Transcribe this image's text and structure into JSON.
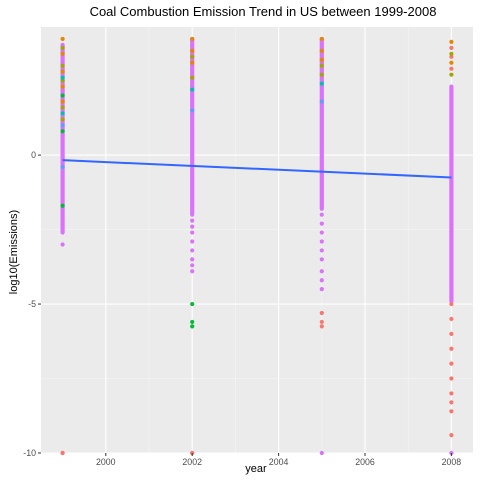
{
  "chart_data": {
    "type": "scatter",
    "title": "Coal Combustion Emission Trend in US between 1999-2008",
    "xlabel": "year",
    "ylabel": "log10(Emissions)",
    "xlim": [
      1998.5,
      2008.5
    ],
    "ylim": [
      -10,
      4.3
    ],
    "x_ticks": [
      2000,
      2002,
      2004,
      2006,
      2008
    ],
    "x_tick_labels": [
      "2000",
      "2002",
      "2004",
      "2006",
      "2008"
    ],
    "y_ticks": [
      -10,
      -5,
      0
    ],
    "y_tick_labels": [
      "-10",
      "-5",
      "0"
    ],
    "grid": true,
    "legend": "none",
    "series": [
      {
        "name": "group-red",
        "color": "#F8766D",
        "points": [
          {
            "x": 1999,
            "y": -10
          },
          {
            "x": 2002,
            "y": -10
          },
          {
            "x": 2005,
            "y": -5.3
          },
          {
            "x": 2005,
            "y": -5.6
          },
          {
            "x": 2005,
            "y": -5.75
          },
          {
            "x": 2008,
            "y": 3.6
          },
          {
            "x": 2008,
            "y": 3.3
          },
          {
            "x": 2008,
            "y": 2.9
          },
          {
            "x": 2008,
            "y": -5.0
          },
          {
            "x": 2008,
            "y": -5.5
          },
          {
            "x": 2008,
            "y": -6.0
          },
          {
            "x": 2008,
            "y": -6.5
          },
          {
            "x": 2008,
            "y": -7.0
          },
          {
            "x": 2008,
            "y": -7.5
          },
          {
            "x": 2008,
            "y": -8.0
          },
          {
            "x": 2008,
            "y": -8.3
          },
          {
            "x": 2008,
            "y": -8.6
          },
          {
            "x": 2008,
            "y": -9.4
          }
        ]
      },
      {
        "name": "group-orange",
        "color": "#E58700",
        "points": [
          {
            "x": 1999,
            "y": 3.9
          },
          {
            "x": 1999,
            "y": 3.4
          },
          {
            "x": 1999,
            "y": 2.8
          },
          {
            "x": 1999,
            "y": 2.3
          },
          {
            "x": 1999,
            "y": 1.8
          },
          {
            "x": 2002,
            "y": 3.9
          },
          {
            "x": 2002,
            "y": 3.5
          },
          {
            "x": 2002,
            "y": 3.1
          },
          {
            "x": 2005,
            "y": 3.9
          },
          {
            "x": 2005,
            "y": 3.5
          },
          {
            "x": 2005,
            "y": 3.2
          },
          {
            "x": 2008,
            "y": 3.8
          },
          {
            "x": 2008,
            "y": 3.1
          }
        ]
      },
      {
        "name": "group-olive",
        "color": "#A3A500",
        "points": [
          {
            "x": 1999,
            "y": 3.6
          },
          {
            "x": 1999,
            "y": 3.0
          },
          {
            "x": 1999,
            "y": 2.5
          },
          {
            "x": 1999,
            "y": 1.6
          },
          {
            "x": 1999,
            "y": 1.2
          },
          {
            "x": 2002,
            "y": 3.3
          },
          {
            "x": 2002,
            "y": 2.6
          },
          {
            "x": 2005,
            "y": 3.0
          },
          {
            "x": 2005,
            "y": 2.7
          },
          {
            "x": 2008,
            "y": 3.4
          },
          {
            "x": 2008,
            "y": 2.7
          }
        ]
      },
      {
        "name": "group-green",
        "color": "#00BA38",
        "points": [
          {
            "x": 1999,
            "y": 0.8
          },
          {
            "x": 1999,
            "y": 2.0
          },
          {
            "x": 1999,
            "y": -1.7
          },
          {
            "x": 2002,
            "y": -5.0
          },
          {
            "x": 2002,
            "y": -5.6
          },
          {
            "x": 2002,
            "y": -5.75
          }
        ]
      },
      {
        "name": "group-teal",
        "color": "#00C0AF",
        "points": [
          {
            "x": 1999,
            "y": 1.4
          },
          {
            "x": 1999,
            "y": 2.6
          },
          {
            "x": 2002,
            "y": 2.2
          },
          {
            "x": 2005,
            "y": 2.4
          }
        ]
      },
      {
        "name": "group-blue",
        "color": "#619CFF",
        "points": [
          {
            "x": 1999,
            "y": 1.0
          },
          {
            "x": 1999,
            "y": -0.4
          },
          {
            "x": 2002,
            "y": 1.5
          },
          {
            "x": 2005,
            "y": 1.8
          }
        ]
      }
    ],
    "dense_series": [
      {
        "name": "group-magenta",
        "color": "#DB72FB",
        "segments": [
          {
            "x": 1999,
            "y_from": -2.6,
            "y_to": 3.7,
            "outliers": [
              -3.0,
              -10
            ]
          },
          {
            "x": 2002,
            "y_from": -2.0,
            "y_to": 3.9,
            "outliers": [
              -2.2,
              -2.4,
              -2.6,
              -2.9,
              -3.2,
              -3.5,
              -3.7,
              -3.9,
              -10
            ]
          },
          {
            "x": 2005,
            "y_from": -1.8,
            "y_to": 3.9,
            "outliers": [
              -2.0,
              -2.3,
              -2.6,
              -2.9,
              -3.2,
              -3.5,
              -3.9,
              -4.2,
              -4.5,
              -10
            ]
          },
          {
            "x": 2008,
            "y_from": -4.9,
            "y_to": 2.3,
            "outliers": [
              -10
            ]
          }
        ]
      }
    ],
    "trend_line": {
      "color": "#3366FF",
      "x": [
        1999,
        2008
      ],
      "y": [
        -0.17,
        -0.75
      ]
    }
  }
}
